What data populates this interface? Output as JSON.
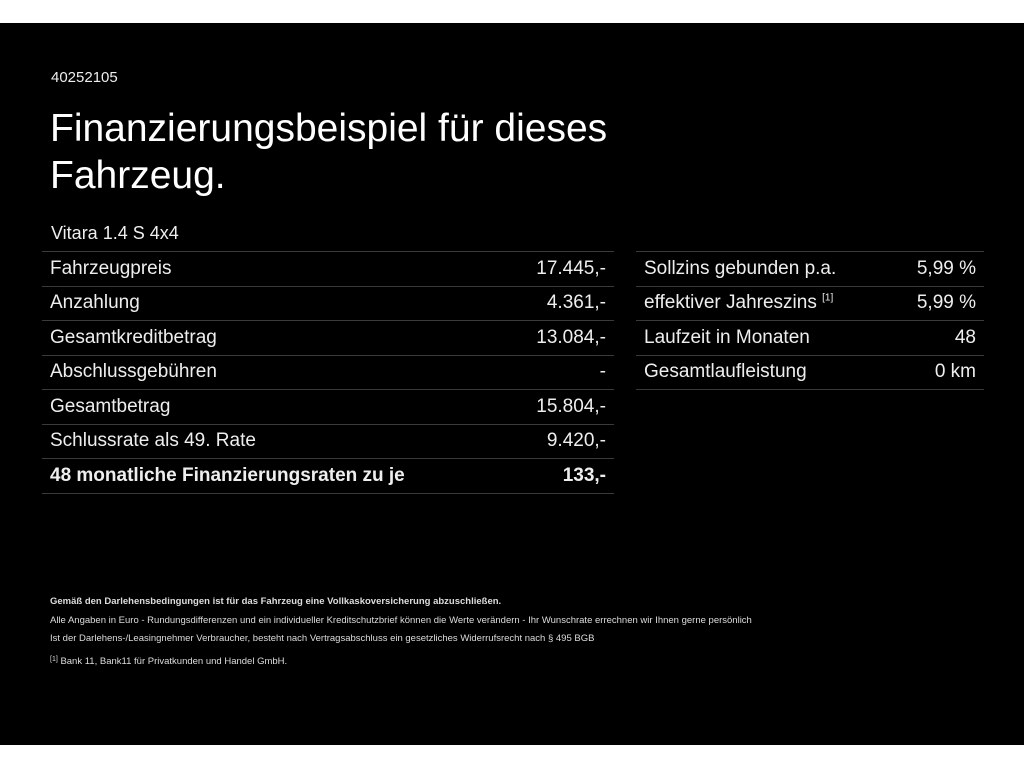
{
  "ref_number": "40252105",
  "title": "Finanzierungsbeispiel für dieses Fahrzeug.",
  "model": "Vitara 1.4 S 4x4",
  "left_table": [
    {
      "label": "Fahrzeugpreis",
      "value": "17.445,-"
    },
    {
      "label": "Anzahlung",
      "value": "4.361,-"
    },
    {
      "label": "Gesamtkreditbetrag",
      "value": "13.084,-"
    },
    {
      "label": "Abschlussgebühren",
      "value": "-"
    },
    {
      "label": "Gesamtbetrag",
      "value": "15.804,-"
    },
    {
      "label": "Schlussrate als 49. Rate",
      "value": "9.420,-"
    },
    {
      "label": "48 monatliche Finanzierungsraten zu je",
      "value": "133,-"
    }
  ],
  "right_table": [
    {
      "label": "Sollzins gebunden p.a.",
      "value": "5,99 %"
    },
    {
      "label": "effektiver Jahreszins",
      "sup": "[1]",
      "value": "5,99 %"
    },
    {
      "label": "Laufzeit in Monaten",
      "value": "48"
    },
    {
      "label": "Gesamtlaufleistung",
      "value": "0 km"
    }
  ],
  "footer": {
    "insurance_note": "Gemäß den Darlehensbedingungen ist für das Fahrzeug eine Vollkaskoversicherung abzuschließen.",
    "line1": "Alle Angaben in Euro - Rundungsdifferenzen und ein individueller Kreditschutzbrief können die Werte verändern - Ihr Wunschrate errechnen wir Ihnen gerne persönlich",
    "line2": "Ist der Darlehens-/Leasingnehmer Verbraucher, besteht nach Vertragsabschluss ein gesetzliches Widerrufsrecht nach § 495 BGB",
    "footnote_mark": "[1]",
    "footnote": "Bank 11, Bank11 für Privatkunden und Handel GmbH."
  }
}
